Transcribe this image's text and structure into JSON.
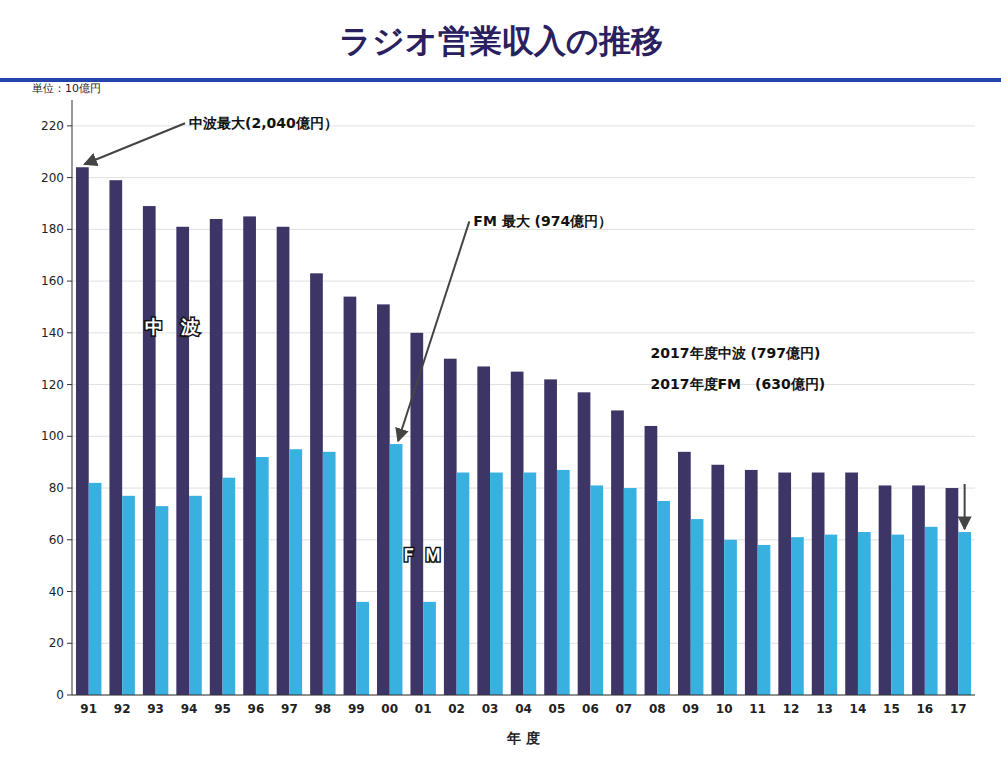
{
  "chart_data": {
    "type": "bar",
    "title": "ラジオ営業収入の推移",
    "xlabel": "年 度",
    "ylabel": "単位：10億円",
    "categories": [
      "91",
      "92",
      "93",
      "94",
      "95",
      "96",
      "97",
      "98",
      "99",
      "00",
      "01",
      "02",
      "03",
      "04",
      "05",
      "06",
      "07",
      "08",
      "09",
      "10",
      "11",
      "12",
      "13",
      "14",
      "15",
      "16",
      "17"
    ],
    "series": [
      {
        "name": "中　波",
        "color": "#3d3566",
        "values": [
          204,
          199,
          189,
          181,
          184,
          185,
          181,
          163,
          154,
          151,
          140,
          130,
          127,
          125,
          122,
          117,
          110,
          104,
          94,
          89,
          87,
          86,
          86,
          86,
          81,
          81,
          80
        ]
      },
      {
        "name": "Ｆ Ｍ",
        "color": "#38b0e0",
        "values": [
          82,
          77,
          73,
          77,
          84,
          92,
          95,
          94,
          36,
          97,
          36,
          86,
          86,
          86,
          87,
          81,
          80,
          75,
          68,
          60,
          58,
          61,
          62,
          63,
          62,
          65,
          63
        ]
      }
    ],
    "ylim": [
      0,
      230
    ],
    "yticks": [
      0,
      20,
      40,
      60,
      80,
      100,
      120,
      140,
      160,
      180,
      200,
      220
    ],
    "grid": true,
    "annotations": [
      "中波最大(2,040億円）",
      "FM 最大 (974億円）",
      "2017年度中波 (797億円)",
      "2017年度FM　(630億円)"
    ]
  }
}
